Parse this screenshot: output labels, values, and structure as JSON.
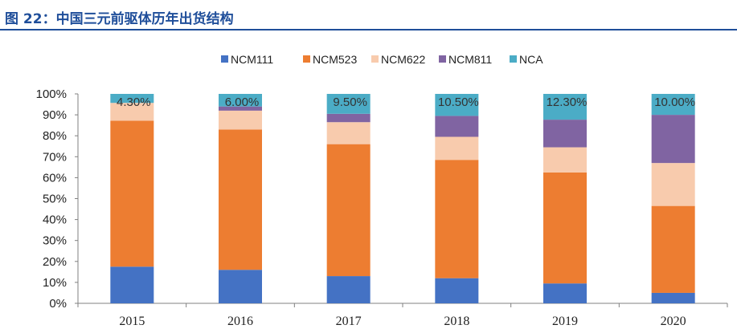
{
  "header": {
    "title": "图 22：中国三元前驱体历年出货结构"
  },
  "chart_data": {
    "type": "bar",
    "stacked": true,
    "categories": [
      "2015",
      "2016",
      "2017",
      "2018",
      "2019",
      "2020"
    ],
    "series": [
      {
        "name": "NCM111",
        "color": "#4472c4",
        "values": [
          17.5,
          16.0,
          13.0,
          12.0,
          9.5,
          5.0
        ]
      },
      {
        "name": "NCM523",
        "color": "#ed7d31",
        "values": [
          69.7,
          67.0,
          63.0,
          56.5,
          53.0,
          41.5
        ]
      },
      {
        "name": "NCM622",
        "color": "#f8cbad",
        "values": [
          8.5,
          9.0,
          10.5,
          11.0,
          12.0,
          20.5
        ]
      },
      {
        "name": "NCM811",
        "color": "#8064a2",
        "values": [
          0.0,
          2.0,
          4.0,
          10.0,
          13.2,
          23.0
        ]
      },
      {
        "name": "NCA",
        "color": "#4bacc6",
        "values": [
          4.3,
          6.0,
          9.5,
          10.5,
          12.3,
          10.0
        ]
      }
    ],
    "data_labels": [
      {
        "series": "NCA",
        "labels": [
          "4.30%",
          "6.00%",
          "9.50%",
          "10.50%",
          "12.30%",
          "10.00%"
        ]
      }
    ],
    "yticks": [
      "0%",
      "10%",
      "20%",
      "30%",
      "40%",
      "50%",
      "60%",
      "70%",
      "80%",
      "90%",
      "100%"
    ],
    "ylim": [
      0,
      100
    ],
    "legend_position": "top-center",
    "grid": false
  }
}
